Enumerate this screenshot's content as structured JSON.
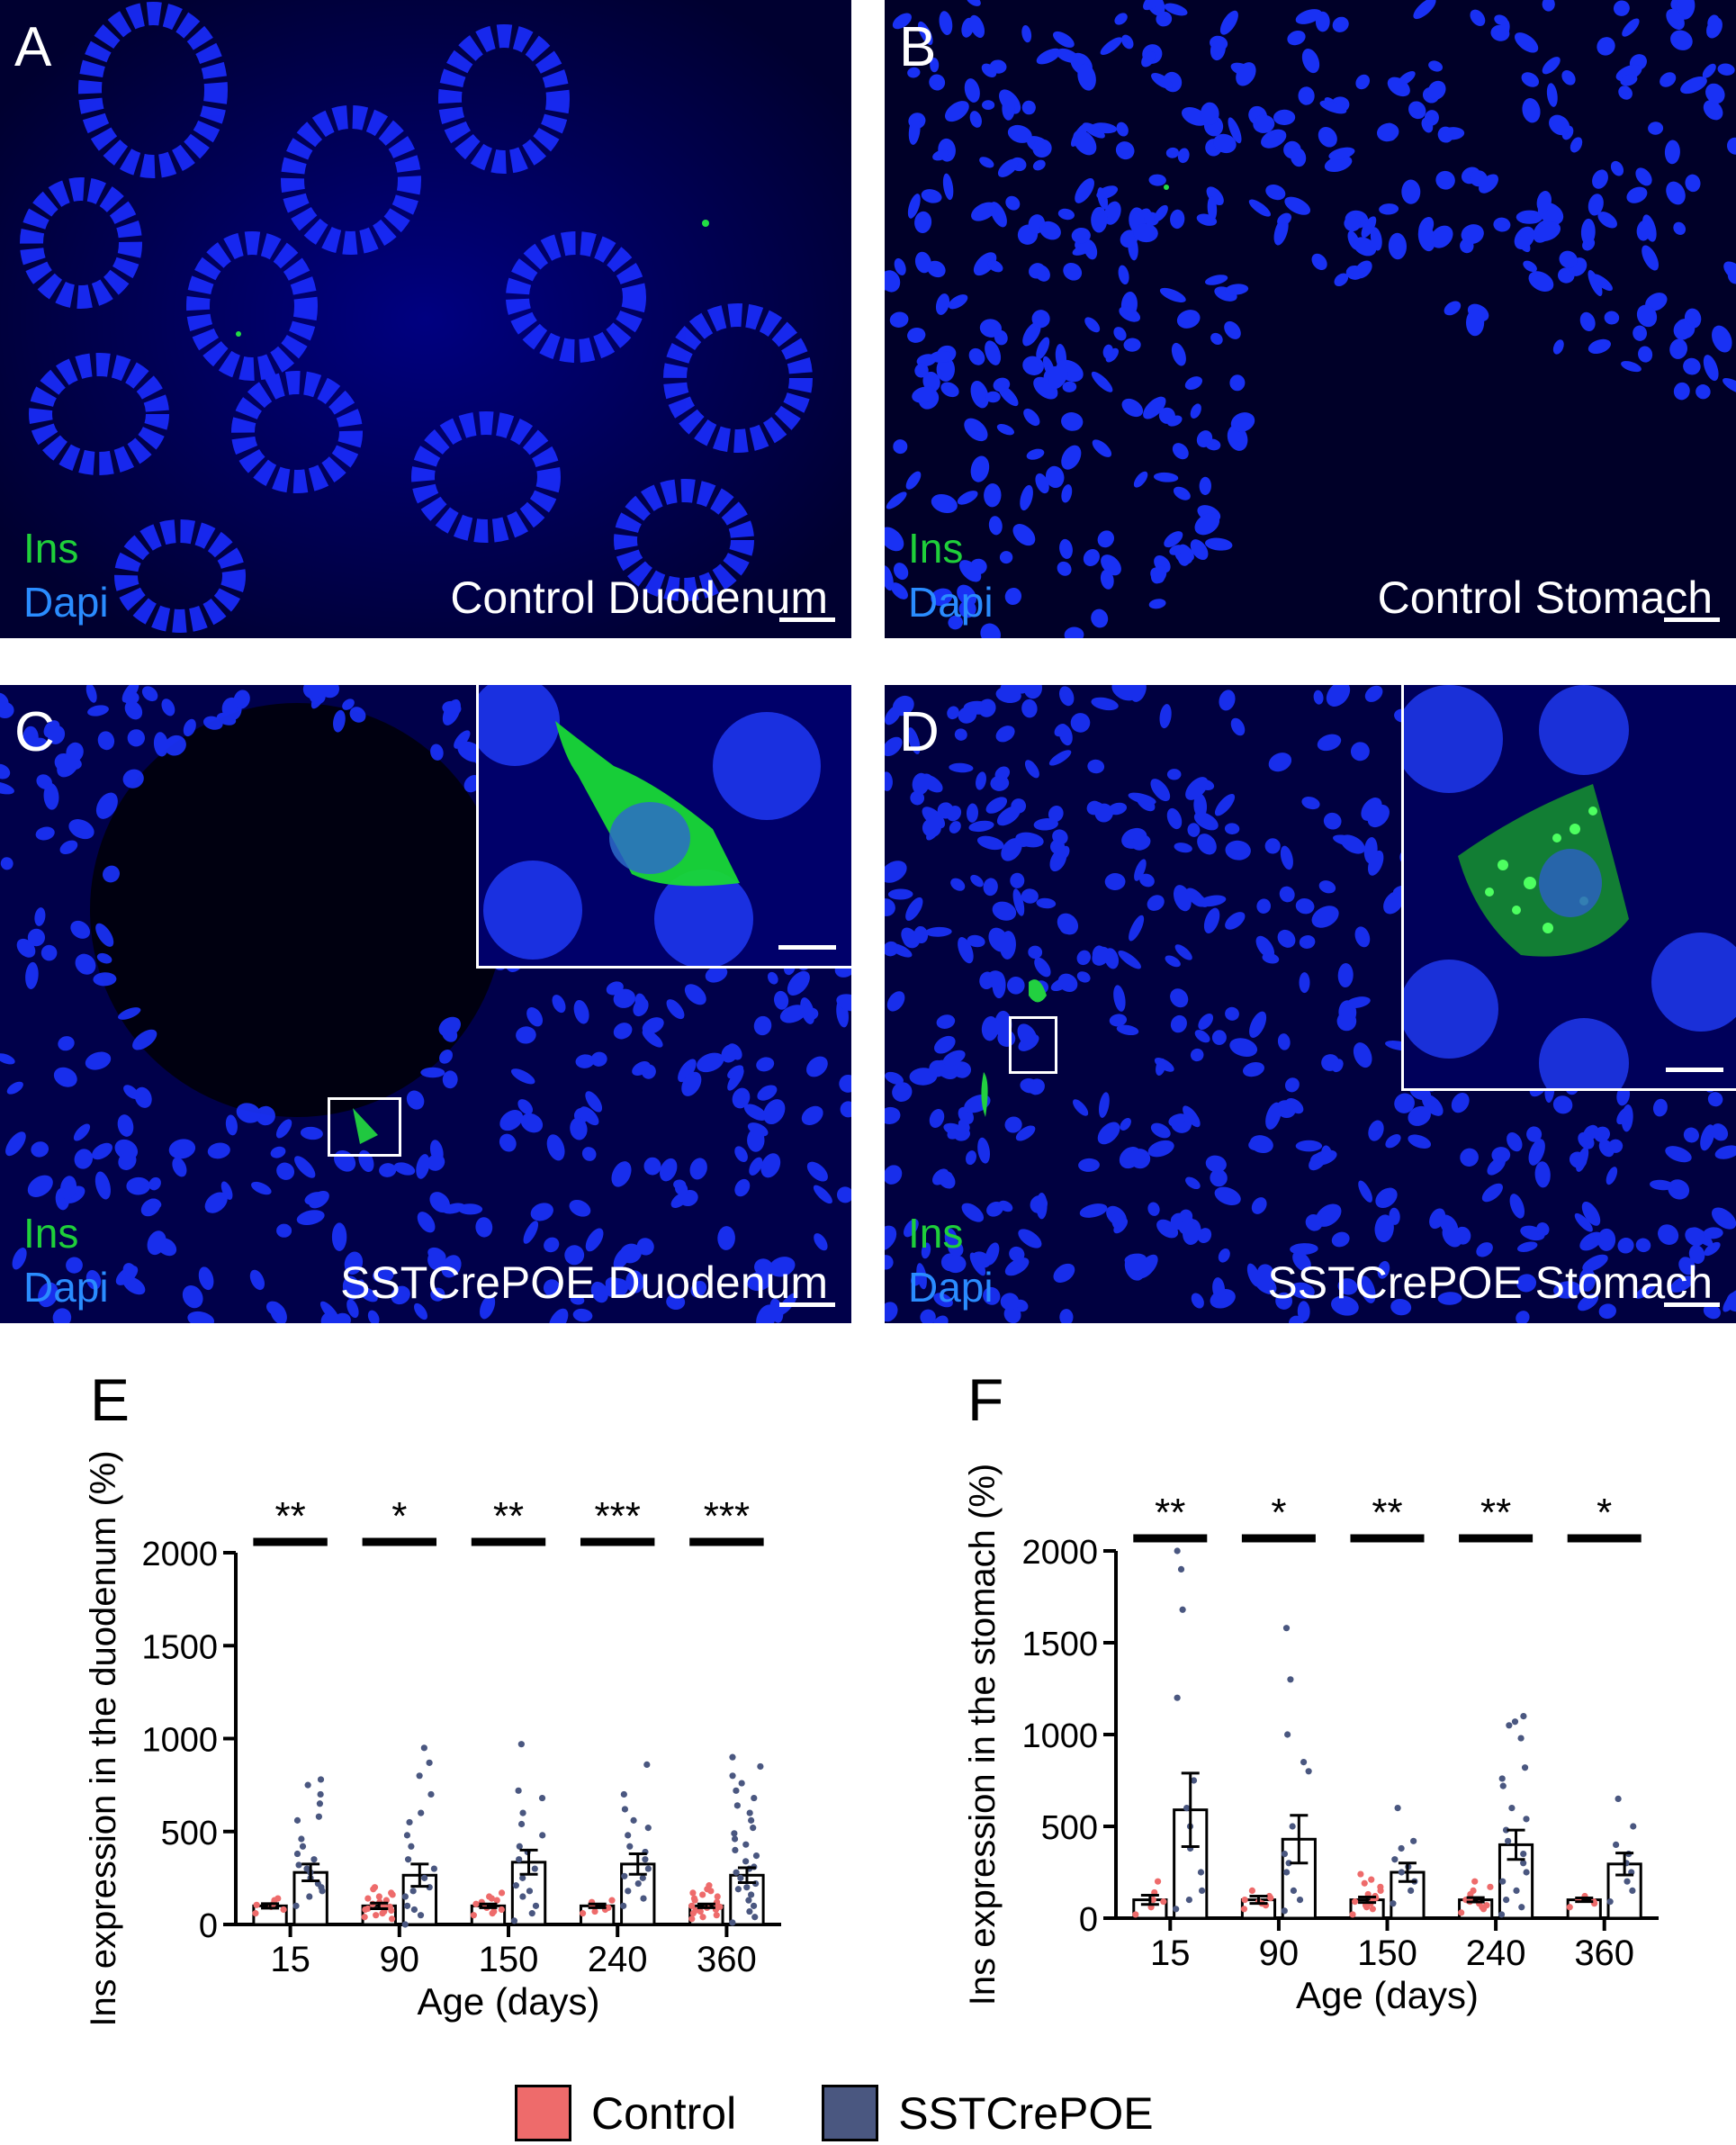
{
  "panels": {
    "A": {
      "letter": "A",
      "stain_ins": "Ins",
      "stain_dapi": "Dapi",
      "caption": "Control Duodenum"
    },
    "B": {
      "letter": "B",
      "stain_ins": "Ins",
      "stain_dapi": "Dapi",
      "caption": "Control Stomach"
    },
    "C": {
      "letter": "C",
      "stain_ins": "Ins",
      "stain_dapi": "Dapi",
      "caption": "SSTCrePOE Duodenum"
    },
    "D": {
      "letter": "D",
      "stain_ins": "Ins",
      "stain_dapi": "Dapi",
      "caption": "SSTCrePOE Stomach"
    },
    "E": {
      "letter": "E"
    },
    "F": {
      "letter": "F"
    }
  },
  "colors": {
    "control": "#ee6b6b",
    "sst": "#4a5780",
    "dapi_blue": "#1e3cff",
    "ins_green": "#1fcf3a"
  },
  "legend": {
    "control": "Control",
    "sst": "SSTCrePOE"
  },
  "chart_data": [
    {
      "panel": "E",
      "type": "bar",
      "categories": [
        "15",
        "90",
        "150",
        "240",
        "360"
      ],
      "xlabel": "Age (days)",
      "ylabel": "Ins expression in the duodenum (%)",
      "ylim": [
        0,
        2000
      ],
      "yticks": [
        "0",
        "500",
        "1000",
        "1500",
        "2000"
      ],
      "series": [
        {
          "name": "Control",
          "values": [
            100,
            100,
            100,
            100,
            100
          ],
          "sem": [
            12,
            15,
            10,
            10,
            10
          ]
        },
        {
          "name": "SSTCrePOE",
          "values": [
            280,
            265,
            335,
            325,
            265
          ],
          "sem": [
            45,
            60,
            65,
            55,
            40
          ]
        }
      ],
      "significance": [
        "**",
        "*",
        "**",
        "***",
        "***"
      ],
      "points": {
        "Control": [
          [
            60,
            95,
            110,
            130,
            140,
            80,
            105
          ],
          [
            40,
            60,
            80,
            95,
            110,
            130,
            150,
            170,
            200,
            70,
            50,
            120,
            90,
            100,
            85,
            140,
            160,
            30,
            190,
            75
          ],
          [
            50,
            70,
            90,
            110,
            130,
            150,
            170,
            80,
            100,
            60,
            120,
            140
          ],
          [
            60,
            80,
            90,
            110,
            120,
            100,
            70,
            130
          ],
          [
            30,
            50,
            70,
            90,
            110,
            130,
            150,
            170,
            190,
            210,
            60,
            80,
            100,
            120,
            140,
            40,
            160,
            180,
            95,
            75
          ]
        ],
        "SSTCrePOE": [
          [
            100,
            150,
            180,
            200,
            250,
            280,
            300,
            350,
            380,
            420,
            460,
            560,
            580,
            650,
            700,
            750,
            780,
            220,
            320
          ],
          [
            0,
            50,
            80,
            100,
            150,
            180,
            200,
            250,
            350,
            420,
            480,
            550,
            600,
            700,
            800,
            870,
            950,
            300
          ],
          [
            20,
            60,
            100,
            150,
            180,
            210,
            250,
            300,
            350,
            420,
            480,
            540,
            600,
            680,
            720,
            970,
            390
          ],
          [
            100,
            140,
            180,
            220,
            260,
            300,
            350,
            390,
            420,
            480,
            520,
            560,
            620,
            700,
            860,
            250
          ],
          [
            10,
            40,
            70,
            100,
            130,
            160,
            190,
            220,
            250,
            280,
            310,
            340,
            370,
            400,
            430,
            460,
            490,
            520,
            560,
            600,
            640,
            680,
            720,
            760,
            800,
            850,
            900,
            300,
            200
          ]
        ]
      }
    },
    {
      "panel": "F",
      "type": "bar",
      "categories": [
        "15",
        "90",
        "150",
        "240",
        "360"
      ],
      "xlabel": "Age (days)",
      "ylabel": "Ins expression in the stomach (%)",
      "ylim": [
        0,
        2000
      ],
      "yticks": [
        "0",
        "500",
        "1000",
        "1500",
        "2000"
      ],
      "series": [
        {
          "name": "Control",
          "values": [
            100,
            100,
            100,
            100,
            100
          ],
          "sem": [
            25,
            20,
            15,
            12,
            10
          ]
        },
        {
          "name": "SSTCrePOE",
          "values": [
            590,
            430,
            250,
            400,
            295
          ],
          "sem": [
            200,
            130,
            50,
            80,
            60
          ]
        }
      ],
      "significance": [
        "**",
        "*",
        "**",
        "**",
        "*"
      ],
      "points": {
        "Control": [
          [
            20,
            60,
            100,
            140,
            200,
            90
          ],
          [
            50,
            80,
            100,
            120,
            150,
            70,
            90,
            110
          ],
          [
            20,
            50,
            70,
            90,
            110,
            130,
            150,
            170,
            190,
            210,
            240,
            80,
            60,
            100,
            120
          ],
          [
            30,
            50,
            70,
            90,
            110,
            130,
            150,
            170,
            200,
            80,
            100,
            60
          ],
          [
            60,
            80,
            100,
            120,
            90
          ]
        ],
        "SSTCrePOE": [
          [
            50,
            100,
            150,
            250,
            380,
            500,
            600,
            750,
            1200,
            1680,
            1900,
            2000
          ],
          [
            40,
            100,
            150,
            250,
            350,
            500,
            800,
            850,
            1000,
            1300,
            1580,
            300
          ],
          [
            80,
            150,
            200,
            250,
            280,
            320,
            380,
            420,
            600
          ],
          [
            20,
            60,
            100,
            150,
            200,
            250,
            300,
            350,
            420,
            480,
            540,
            600,
            720,
            760,
            820,
            980,
            1050,
            1070,
            1100
          ],
          [
            90,
            150,
            200,
            250,
            300,
            350,
            400,
            500,
            650
          ]
        ]
      }
    }
  ]
}
